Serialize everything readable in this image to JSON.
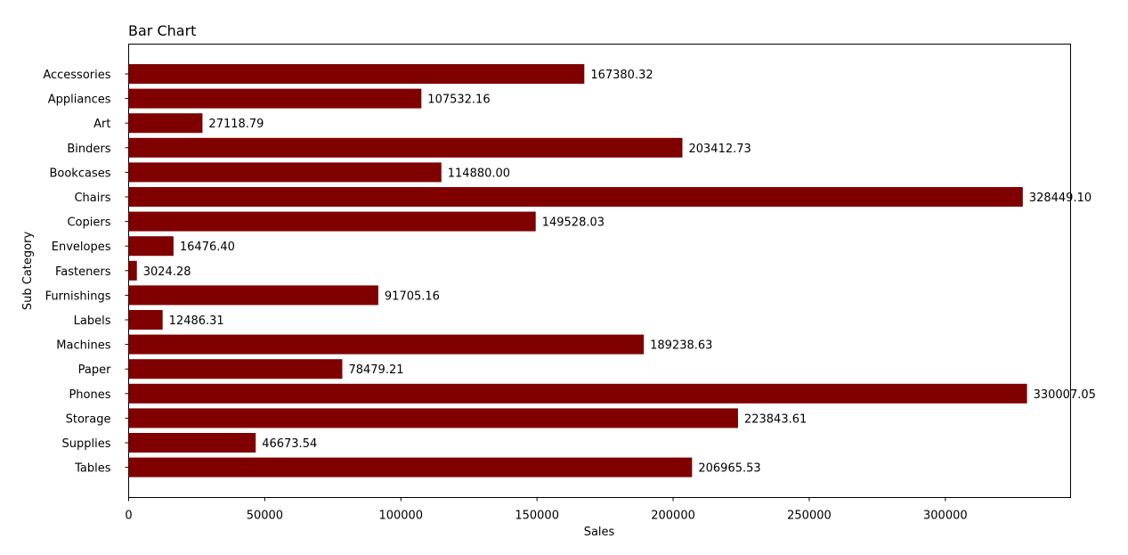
{
  "chart_data": {
    "type": "bar",
    "orientation": "horizontal",
    "title": "Bar Chart",
    "xlabel": "Sales",
    "ylabel": "Sub Category",
    "xlim": [
      0,
      346000
    ],
    "xticks": [
      0,
      50000,
      100000,
      150000,
      200000,
      250000,
      300000
    ],
    "xtick_labels": [
      "0",
      "50000",
      "100000",
      "150000",
      "200000",
      "250000",
      "300000"
    ],
    "bar_color": "#800000",
    "grid": false,
    "categories": [
      "Accessories",
      "Appliances",
      "Art",
      "Binders",
      "Bookcases",
      "Chairs",
      "Copiers",
      "Envelopes",
      "Fasteners",
      "Furnishings",
      "Labels",
      "Machines",
      "Paper",
      "Phones",
      "Storage",
      "Supplies",
      "Tables"
    ],
    "values": [
      167380.32,
      107532.16,
      27118.79,
      203412.73,
      114880.0,
      328449.1,
      149528.03,
      16476.4,
      3024.28,
      91705.16,
      12486.31,
      189238.63,
      78479.21,
      330007.05,
      223843.61,
      46673.54,
      206965.53
    ],
    "value_labels": [
      "167380.32",
      "107532.16",
      "27118.79",
      "203412.73",
      "114880.00",
      "328449.10",
      "149528.03",
      "16476.40",
      "3024.28",
      "91705.16",
      "12486.31",
      "189238.63",
      "78479.21",
      "330007.05",
      "223843.61",
      "46673.54",
      "206965.53"
    ]
  }
}
